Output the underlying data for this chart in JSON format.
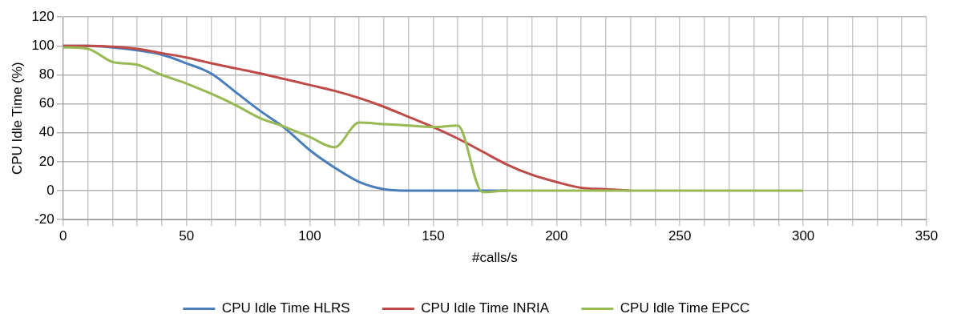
{
  "chart_data": {
    "type": "line",
    "xlabel": "#calls/s",
    "ylabel": "CPU Idle Time (%)",
    "x": [
      0,
      10,
      20,
      30,
      40,
      50,
      60,
      70,
      80,
      90,
      100,
      110,
      120,
      130,
      140,
      150,
      160,
      170,
      180,
      190,
      200,
      210,
      220,
      230,
      240,
      250,
      260,
      270,
      280,
      290,
      300
    ],
    "series": [
      {
        "name": "CPU Idle Time HLRS",
        "color": "#4a7ebb",
        "values": [
          100,
          100,
          99,
          97,
          94,
          88,
          81,
          68,
          55,
          43,
          28,
          16,
          6,
          1,
          0,
          0,
          0,
          0,
          0,
          null,
          null,
          null,
          null,
          null,
          null,
          null,
          null,
          null,
          null,
          null,
          null
        ]
      },
      {
        "name": "CPU Idle Time INRIA",
        "color": "#be4b48",
        "values": [
          100,
          100,
          99.5,
          98,
          95,
          92,
          88,
          84.5,
          81,
          77,
          73,
          69,
          64,
          58,
          51,
          44,
          36,
          27,
          18,
          11,
          6,
          2,
          1,
          0,
          null,
          null,
          null,
          null,
          null,
          null,
          null
        ]
      },
      {
        "name": "CPU Idle Time EPCC",
        "color": "#98b954",
        "values": [
          99,
          98,
          89,
          87,
          80,
          74,
          67,
          59,
          50,
          44,
          37,
          30,
          47,
          46,
          45,
          44,
          45,
          -1,
          0,
          0,
          0,
          0,
          0,
          0,
          0,
          0,
          0,
          0,
          0,
          0,
          0
        ]
      }
    ],
    "xlim": [
      0,
      350
    ],
    "xticks": [
      0,
      {
        "value": 10,
        "label": null
      },
      {
        "value": 20,
        "label": null
      },
      {
        "value": 30,
        "label": null
      },
      {
        "value": 40,
        "label": null
      },
      50,
      {
        "value": 60,
        "label": null
      },
      {
        "value": 70,
        "label": null
      },
      {
        "value": 80,
        "label": null
      },
      {
        "value": 90,
        "label": null
      },
      100,
      {
        "value": 110,
        "label": null
      },
      {
        "value": 120,
        "label": null
      },
      {
        "value": 130,
        "label": null
      },
      {
        "value": 140,
        "label": null
      },
      150,
      {
        "value": 160,
        "label": null
      },
      {
        "value": 170,
        "label": null
      },
      {
        "value": 180,
        "label": null
      },
      {
        "value": 190,
        "label": null
      },
      200,
      {
        "value": 210,
        "label": null
      },
      {
        "value": 220,
        "label": null
      },
      {
        "value": 230,
        "label": null
      },
      {
        "value": 240,
        "label": null
      },
      250,
      {
        "value": 260,
        "label": null
      },
      {
        "value": 270,
        "label": null
      },
      {
        "value": 280,
        "label": null
      },
      {
        "value": 290,
        "label": null
      },
      300,
      {
        "value": 310,
        "label": null
      },
      {
        "value": 320,
        "label": null
      },
      {
        "value": 330,
        "label": null
      },
      {
        "value": 340,
        "label": null
      },
      350
    ],
    "ylim": [
      -20,
      120
    ],
    "yticks": [
      -20,
      0,
      20,
      40,
      60,
      80,
      100,
      120
    ],
    "grid": true,
    "legend": "bottom",
    "marker": "none",
    "line_style": "solid"
  }
}
